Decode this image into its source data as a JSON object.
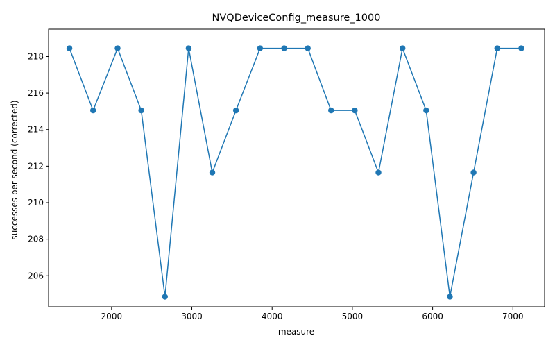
{
  "chart_data": {
    "type": "line",
    "title": "NVQDeviceConfig_measure_1000",
    "xlabel": "measure",
    "ylabel": "successes per second (corrected)",
    "xlim": [
      1215,
      7395
    ],
    "ylim": [
      204.3,
      219.5
    ],
    "x_ticks": [
      2000,
      3000,
      4000,
      5000,
      6000,
      7000
    ],
    "y_ticks": [
      206,
      208,
      210,
      212,
      214,
      216,
      218
    ],
    "grid": false,
    "legend": "none",
    "series": [
      {
        "color": "#1f77b4",
        "marker": "circle",
        "x": [
          1475,
          1770,
          2075,
          2370,
          2665,
          2960,
          3255,
          3550,
          3850,
          4150,
          4445,
          4735,
          5030,
          5325,
          5625,
          5920,
          6215,
          6510,
          6805,
          7105
        ],
        "values": [
          218.45,
          215.05,
          218.45,
          215.05,
          204.85,
          218.45,
          211.65,
          215.05,
          218.45,
          218.45,
          218.45,
          215.05,
          215.05,
          211.65,
          218.45,
          215.05,
          204.85,
          211.65,
          218.45,
          218.45
        ]
      }
    ]
  }
}
